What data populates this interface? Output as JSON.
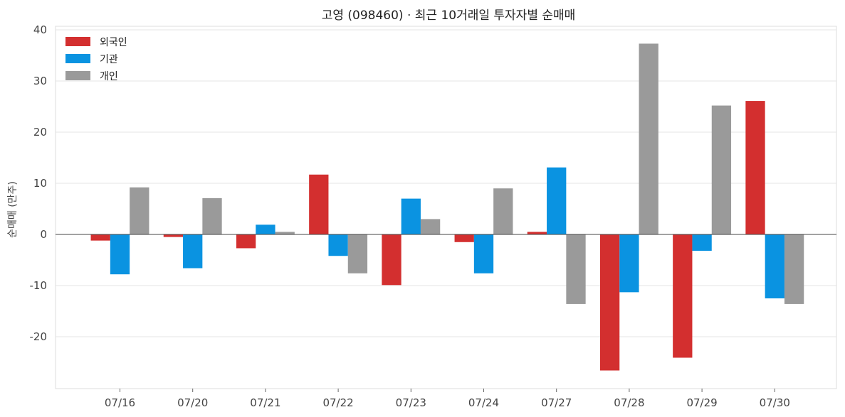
{
  "chart_data": {
    "type": "bar",
    "title": "고영 (098460) · 최근 10거래일 투자자별 순매매",
    "xlabel": "",
    "ylabel": "순매매 (만주)",
    "categories": [
      "07/16",
      "07/20",
      "07/21",
      "07/22",
      "07/23",
      "07/24",
      "07/27",
      "07/28",
      "07/29",
      "07/30"
    ],
    "series": [
      {
        "name": "외국인",
        "color": "#d32f2f",
        "values": [
          -1.2,
          -0.5,
          -2.7,
          11.7,
          -9.9,
          -1.5,
          0.5,
          -26.6,
          -24.1,
          26.1
        ]
      },
      {
        "name": "기관",
        "color": "#0a93e1",
        "values": [
          -7.8,
          -6.6,
          1.9,
          -4.2,
          7.0,
          -7.6,
          13.1,
          -11.3,
          -3.2,
          -12.5
        ]
      },
      {
        "name": "개인",
        "color": "#9a9a9a",
        "values": [
          9.2,
          7.1,
          0.5,
          -7.6,
          3.0,
          9.0,
          -13.6,
          37.3,
          25.2,
          -13.6
        ]
      }
    ],
    "ylim": [
      -30,
      40
    ],
    "yticks": [
      -20,
      -10,
      0,
      10,
      20,
      30,
      40
    ],
    "grid": true,
    "legend_position": "top-left"
  }
}
